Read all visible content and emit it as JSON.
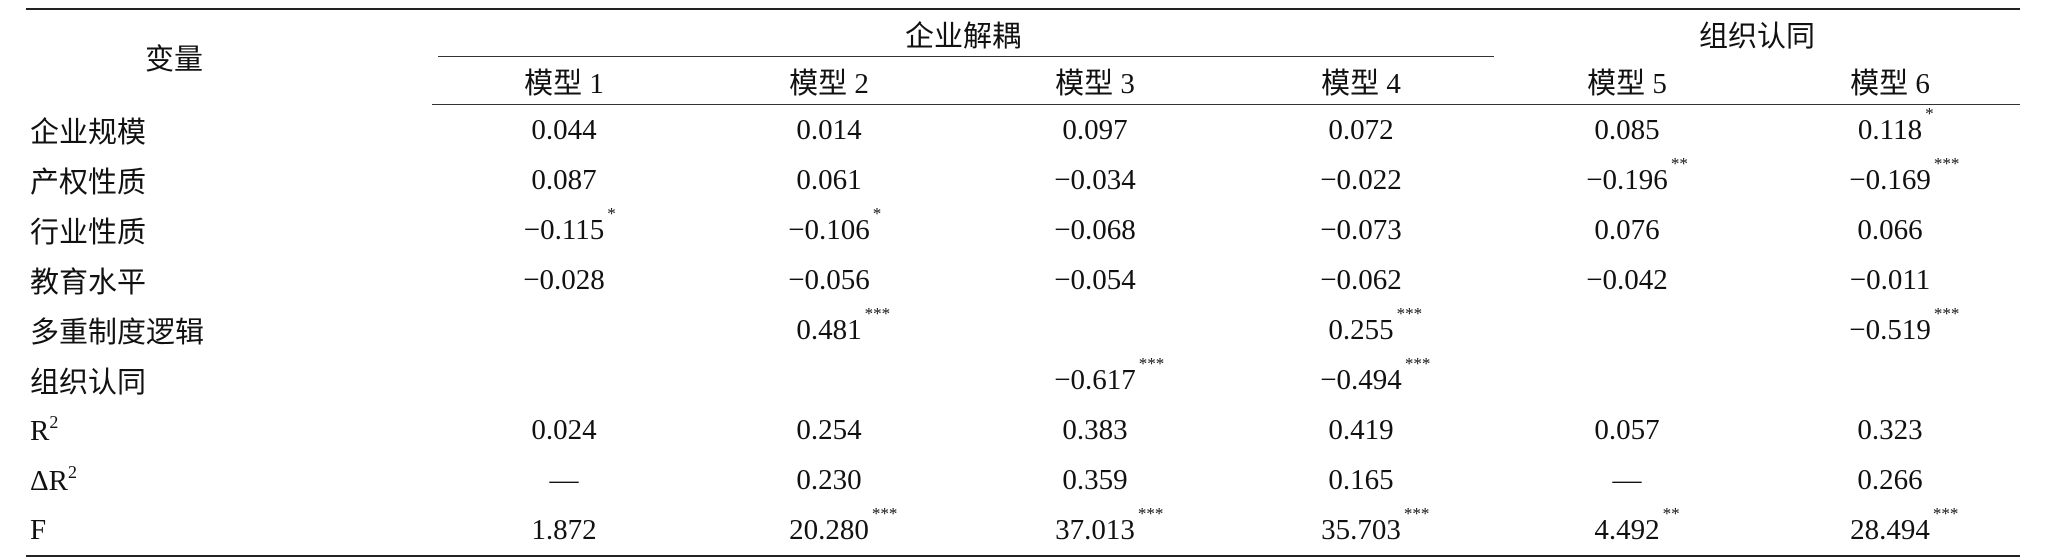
{
  "header": {
    "variable": "变量",
    "groups": [
      "企业解耦",
      "组织认同"
    ],
    "models": [
      "模型 1",
      "模型 2",
      "模型 3",
      "模型 4",
      "模型 5",
      "模型 6"
    ]
  },
  "rows": [
    {
      "label": "企业规模",
      "cells": [
        {
          "value": "0.044"
        },
        {
          "value": "0.014"
        },
        {
          "value": "0.097"
        },
        {
          "value": "0.072"
        },
        {
          "value": "0.085"
        },
        {
          "value": "0.118",
          "sig": "*"
        }
      ]
    },
    {
      "label": "产权性质",
      "cells": [
        {
          "value": "0.087"
        },
        {
          "value": "0.061"
        },
        {
          "value": "−0.034"
        },
        {
          "value": "−0.022"
        },
        {
          "value": "−0.196",
          "sig": "**"
        },
        {
          "value": "−0.169",
          "sig": "***"
        }
      ]
    },
    {
      "label": "行业性质",
      "cells": [
        {
          "value": "−0.115",
          "sig": "*"
        },
        {
          "value": "−0.106",
          "sig": "*"
        },
        {
          "value": "−0.068"
        },
        {
          "value": "−0.073"
        },
        {
          "value": "0.076"
        },
        {
          "value": "0.066"
        }
      ]
    },
    {
      "label": "教育水平",
      "cells": [
        {
          "value": "−0.028"
        },
        {
          "value": "−0.056"
        },
        {
          "value": "−0.054"
        },
        {
          "value": "−0.062"
        },
        {
          "value": "−0.042"
        },
        {
          "value": "−0.011"
        }
      ]
    },
    {
      "label": "多重制度逻辑",
      "cells": [
        null,
        {
          "value": "0.481",
          "sig": "***"
        },
        null,
        {
          "value": "0.255",
          "sig": "***"
        },
        null,
        {
          "value": "−0.519",
          "sig": "***"
        }
      ]
    },
    {
      "label": "组织认同",
      "cells": [
        null,
        null,
        {
          "value": "−0.617",
          "sig": "***"
        },
        {
          "value": "−0.494",
          "sig": "***"
        },
        null,
        null
      ]
    },
    {
      "label": "R",
      "label_sup": "2",
      "cells": [
        {
          "value": "0.024"
        },
        {
          "value": "0.254"
        },
        {
          "value": "0.383"
        },
        {
          "value": "0.419"
        },
        {
          "value": "0.057"
        },
        {
          "value": "0.323"
        }
      ]
    },
    {
      "label": "ΔR",
      "label_sup": "2",
      "cells": [
        {
          "value": "—"
        },
        {
          "value": "0.230"
        },
        {
          "value": "0.359"
        },
        {
          "value": "0.165"
        },
        {
          "value": "—"
        },
        {
          "value": "0.266"
        }
      ]
    },
    {
      "label": "F",
      "cells": [
        {
          "value": "1.872"
        },
        {
          "value": "20.280",
          "sig": "***"
        },
        {
          "value": "37.013",
          "sig": "***"
        },
        {
          "value": "35.703",
          "sig": "***"
        },
        {
          "value": "4.492",
          "sig": "**"
        },
        {
          "value": "28.494",
          "sig": "***"
        }
      ]
    }
  ]
}
